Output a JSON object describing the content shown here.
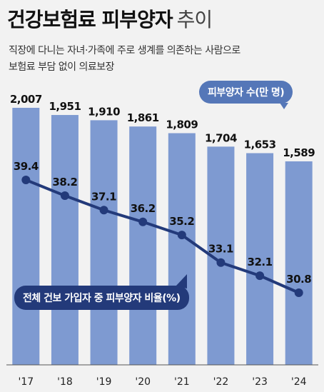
{
  "title": "건강보험료 피부양자",
  "title_suffix": "추이",
  "description": [
    "직장에 다니는 자녀·가족에 주로 생계를 의존하는 사람으로",
    "보험료 부담 없이 의료보장"
  ],
  "colors": {
    "bar": "#7e9ad1",
    "line": "#233a7a",
    "background": "#f2f2f2"
  },
  "chart_data": {
    "type": "bar",
    "categories": [
      "'17",
      "'18",
      "'19",
      "'20",
      "'21",
      "'22",
      "'23",
      "'24"
    ],
    "series": [
      {
        "name": "피부양자 수(만 명)",
        "type": "bar",
        "values": [
          2007,
          1951,
          1910,
          1861,
          1809,
          1704,
          1653,
          1589
        ],
        "labels": [
          "2,007",
          "1,951",
          "1,910",
          "1,861",
          "1,809",
          "1,704",
          "1,653",
          "1,589"
        ]
      },
      {
        "name": "전체 건보 가입자 중 피부양자 비율(%)",
        "type": "line",
        "values": [
          39.4,
          38.2,
          37.1,
          36.2,
          35.2,
          33.1,
          32.1,
          30.8
        ],
        "labels": [
          "39.4",
          "38.2",
          "37.1",
          "36.2",
          "35.2",
          "33.1",
          "32.1",
          "30.8"
        ]
      }
    ],
    "title": "건강보험료 피부양자 추이"
  }
}
